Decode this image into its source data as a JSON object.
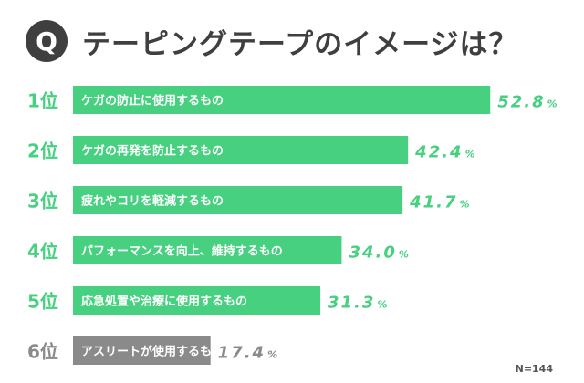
{
  "header": {
    "badge": "Q",
    "title": "テーピングテープのイメージは？"
  },
  "chart_data": {
    "type": "bar",
    "orientation": "horizontal",
    "value_unit": "%",
    "xlim": [
      0,
      60
    ],
    "items": [
      {
        "rank": "1位",
        "label": "ケガの防止に使用するもの",
        "value": 52.8,
        "value_text": "52.8"
      },
      {
        "rank": "2位",
        "label": "ケガの再発を防止するもの",
        "value": 42.4,
        "value_text": "42.4"
      },
      {
        "rank": "3位",
        "label": "疲れやコリを軽減するもの",
        "value": 41.7,
        "value_text": "41.7"
      },
      {
        "rank": "4位",
        "label": "パフォーマンスを向上、維持するもの",
        "value": 34.0,
        "value_text": "34.0"
      },
      {
        "rank": "5位",
        "label": "応急処置や治療に使用するもの",
        "value": 31.3,
        "value_text": "31.3"
      },
      {
        "rank": "6位",
        "label": "アスリートが使用するもの",
        "value": 17.4,
        "value_text": "17.4"
      }
    ],
    "colors": {
      "primary": "#46d07f",
      "secondary": "#8a8a8a"
    },
    "grid": false,
    "legend": "none"
  },
  "sample_size": "N=144"
}
